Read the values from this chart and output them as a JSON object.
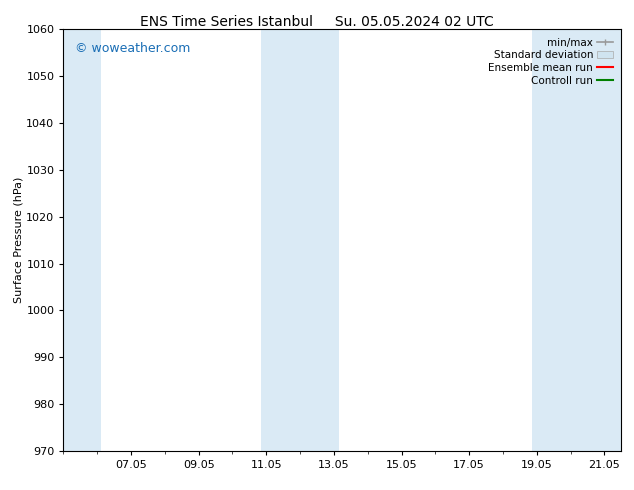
{
  "title_left": "ENS Time Series Istanbul",
  "title_right": "Su. 05.05.2024 02 UTC",
  "ylabel": "Surface Pressure (hPa)",
  "ylim": [
    970,
    1060
  ],
  "yticks": [
    970,
    980,
    990,
    1000,
    1010,
    1020,
    1030,
    1040,
    1050,
    1060
  ],
  "xlim_start": 5.0,
  "xlim_end": 21.5,
  "xtick_labels": [
    "07.05",
    "09.05",
    "11.05",
    "13.05",
    "15.05",
    "17.05",
    "19.05",
    "21.05"
  ],
  "xtick_positions": [
    7.0,
    9.0,
    11.0,
    13.0,
    15.0,
    17.0,
    19.0,
    21.0
  ],
  "shaded_bands": [
    {
      "xmin": 5.0,
      "xmax": 6.1
    },
    {
      "xmin": 10.85,
      "xmax": 13.15
    },
    {
      "xmin": 18.85,
      "xmax": 21.5
    }
  ],
  "shade_color": "#daeaf5",
  "background_color": "#ffffff",
  "plot_bg_color": "#ffffff",
  "watermark_text": "© woweather.com",
  "watermark_color": "#1a6eb5",
  "watermark_fontsize": 9,
  "legend_labels": [
    "min/max",
    "Standard deviation",
    "Ensemble mean run",
    "Controll run"
  ],
  "legend_colors_line": [
    "#999999",
    "#bbccdd",
    "#ff0000",
    "#008000"
  ],
  "legend_patch_color": "#d0e4f0",
  "title_fontsize": 10,
  "ylabel_fontsize": 8,
  "tick_fontsize": 8,
  "legend_fontsize": 7.5
}
